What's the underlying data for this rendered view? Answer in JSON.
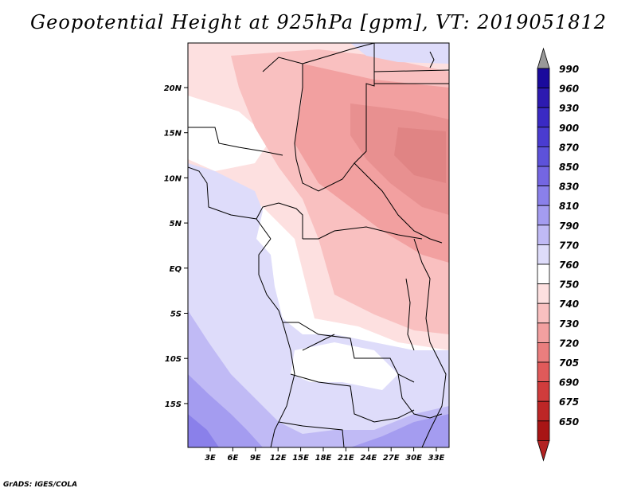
{
  "title": "Geopotential Height at 925hPa [gpm], VT: 2019051812",
  "footer": "GrADS: IGES/COLA",
  "map": {
    "lat_labels": [
      "20N",
      "15N",
      "10N",
      "5N",
      "EQ",
      "5S",
      "10S",
      "15S"
    ],
    "lon_labels": [
      "3E",
      "6E",
      "9E",
      "12E",
      "15E",
      "18E",
      "21E",
      "24E",
      "27E",
      "30E",
      "33E"
    ]
  },
  "colorbar": {
    "levels": [
      "990",
      "960",
      "930",
      "900",
      "870",
      "850",
      "830",
      "810",
      "790",
      "770",
      "760",
      "750",
      "740",
      "730",
      "720",
      "705",
      "690",
      "675",
      "650"
    ],
    "colors": [
      "#1a0a9c",
      "#2d1ab0",
      "#3a2ac4",
      "#4a3cd0",
      "#5d52da",
      "#7466e2",
      "#8a80ea",
      "#a49cf0",
      "#c0baf5",
      "#dedcfa",
      "#ffffff",
      "#fde0e0",
      "#f9c0c0",
      "#f2a0a0",
      "#ea7e7e",
      "#e05a5a",
      "#d03c3c",
      "#bd2626",
      "#a81515"
    ],
    "arrow_top_color": "#999999",
    "arrow_bottom_color": "#b22222"
  }
}
